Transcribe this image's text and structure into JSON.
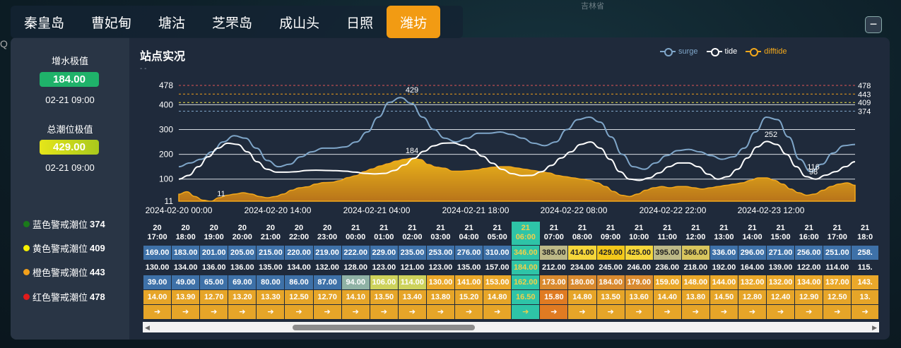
{
  "map": {
    "labels": [
      {
        "text": "吉林省"
      },
      {
        "text": "Q"
      }
    ]
  },
  "tabs": [
    {
      "label": "秦皇岛"
    },
    {
      "label": "曹妃甸"
    },
    {
      "label": "塘沽"
    },
    {
      "label": "芝罘岛"
    },
    {
      "label": "成山头"
    },
    {
      "label": "日照"
    },
    {
      "label": "潍坊"
    }
  ],
  "active_tab": "潍坊",
  "collapse_label": "−",
  "stats": {
    "surge_title": "增水极值",
    "surge_value": "184.00",
    "surge_time": "02-21 09:00",
    "tide_title": "总潮位极值",
    "tide_value": "429.00",
    "tide_time": "02-21 09:00"
  },
  "warnings": [
    {
      "label": "蓝色警戒潮位",
      "value": "374",
      "color": "#1a7a1a"
    },
    {
      "label": "黄色警戒潮位",
      "value": "409",
      "color": "#f6f000"
    },
    {
      "label": "橙色警戒潮位",
      "value": "443",
      "color": "#f2a01b"
    },
    {
      "label": "红色警戒潮位",
      "value": "478",
      "color": "#e21b1b"
    }
  ],
  "chart_title": "站点实况",
  "chart_data": {
    "type": "line",
    "series": [
      {
        "name": "surge",
        "color": "#7fa6c9",
        "values": [
          150,
          165,
          180,
          210,
          250,
          275,
          265,
          225,
          175,
          150,
          160,
          190,
          210,
          225,
          225,
          230,
          250,
          290,
          350,
          410,
          429,
          405,
          350,
          300,
          265,
          250,
          265,
          285,
          285,
          290,
          280,
          265,
          245,
          235,
          250,
          300,
          340,
          350,
          330,
          270,
          200,
          150,
          140,
          165,
          195,
          215,
          220,
          210,
          195,
          180,
          190,
          225,
          290,
          350,
          340,
          270,
          180,
          130,
          160,
          205,
          235,
          240
        ]
      },
      {
        "name": "tide",
        "color": "#ffffff",
        "values": [
          100,
          115,
          150,
          190,
          225,
          245,
          240,
          210,
          170,
          140,
          128,
          128,
          130,
          135,
          136,
          135,
          134,
          132,
          128,
          123,
          121,
          123,
          135,
          157,
          184,
          212,
          234,
          245,
          246,
          236,
          218,
          192,
          164,
          139,
          122,
          114,
          115,
          130,
          155,
          185,
          210,
          240,
          250,
          225,
          180,
          130,
          100,
          95,
          105,
          125,
          150,
          165,
          165,
          150,
          120,
          100,
          110,
          140,
          185,
          230,
          252,
          240,
          200,
          150,
          110,
          100,
          116,
          130,
          150,
          170
        ]
      },
      {
        "name": "difftide",
        "color": "#f3a81b",
        "values": [
          39,
          49,
          30,
          15,
          11,
          25,
          35,
          40,
          45,
          40,
          30,
          25,
          30,
          40,
          55,
          65,
          69,
          80,
          86,
          87,
          94,
          106,
          114,
          130,
          141,
          153,
          162,
          173,
          180,
          184,
          179,
          159,
          148,
          144,
          132,
          132,
          134,
          137,
          143,
          148,
          150,
          150,
          145,
          140,
          135,
          130,
          125,
          115,
          110,
          105,
          100,
          95,
          85,
          70,
          50,
          35,
          30,
          40,
          55,
          65,
          70,
          65,
          70,
          70,
          65,
          60,
          65,
          70,
          75,
          80,
          85,
          95,
          105,
          105,
          95,
          80,
          60,
          45,
          35,
          40,
          55,
          70,
          80,
          85,
          75
        ]
      }
    ],
    "x_tick_labels": [
      "2024-02-20 00:00",
      "2024-02-20 14:00",
      "2024-02-21 04:00",
      "2024-02-21 18:00",
      "2024-02-22 08:00",
      "2024-02-22 22:00",
      "2024-02-23 12:00"
    ],
    "y_tick_labels": [
      "11",
      "100",
      "200",
      "300",
      "400",
      "478"
    ],
    "ylim": [
      11,
      478
    ],
    "warning_lines": [
      {
        "value": 478,
        "color": "#e25555",
        "label": "478"
      },
      {
        "value": 443,
        "color": "#f2a01b",
        "label": "443"
      },
      {
        "value": 409,
        "color": "#f1e44a",
        "label": "409"
      },
      {
        "value": 374,
        "color": "#7fa6c9",
        "label": "374"
      }
    ],
    "point_labels": [
      {
        "series": "surge",
        "text": "429"
      },
      {
        "series": "tide",
        "text": "184"
      },
      {
        "series": "tide",
        "text": "252"
      },
      {
        "series": "tide",
        "text": "116"
      },
      {
        "series": "tide",
        "text": "98"
      },
      {
        "series": "difftide",
        "text": "11"
      }
    ],
    "grid": true,
    "legend_position": "top-right"
  },
  "table": {
    "headers": [
      [
        "20",
        "17:00"
      ],
      [
        "20",
        "18:00"
      ],
      [
        "20",
        "19:00"
      ],
      [
        "20",
        "20:00"
      ],
      [
        "20",
        "21:00"
      ],
      [
        "20",
        "22:00"
      ],
      [
        "20",
        "23:00"
      ],
      [
        "21",
        "00:00"
      ],
      [
        "21",
        "01:00"
      ],
      [
        "21",
        "02:00"
      ],
      [
        "21",
        "03:00"
      ],
      [
        "21",
        "04:00"
      ],
      [
        "21",
        "05:00"
      ],
      [
        "21",
        "06:00"
      ],
      [
        "21",
        "07:00"
      ],
      [
        "21",
        "08:00"
      ],
      [
        "21",
        "09:00"
      ],
      [
        "21",
        "10:00"
      ],
      [
        "21",
        "11:00"
      ],
      [
        "21",
        "12:00"
      ],
      [
        "21",
        "13:00"
      ],
      [
        "21",
        "14:00"
      ],
      [
        "21",
        "15:00"
      ],
      [
        "21",
        "16:00"
      ],
      [
        "21",
        "17:00"
      ],
      [
        "21",
        "18:0"
      ]
    ],
    "highlight_index": 13,
    "row_surge": [
      "169.00",
      "183.00",
      "201.00",
      "205.00",
      "215.00",
      "220.00",
      "219.00",
      "222.00",
      "229.00",
      "235.00",
      "253.00",
      "276.00",
      "310.00",
      "346.00",
      "385.00",
      "414.00",
      "429.00",
      "425.00",
      "395.00",
      "366.00",
      "336.00",
      "296.00",
      "271.00",
      "256.00",
      "251.00",
      "258."
    ],
    "row_tide": [
      "130.00",
      "134.00",
      "136.00",
      "136.00",
      "135.00",
      "134.00",
      "132.00",
      "128.00",
      "123.00",
      "121.00",
      "123.00",
      "135.00",
      "157.00",
      "184.00",
      "212.00",
      "234.00",
      "245.00",
      "246.00",
      "236.00",
      "218.00",
      "192.00",
      "164.00",
      "139.00",
      "122.00",
      "114.00",
      "115."
    ],
    "row_diff": [
      "39.00",
      "49.00",
      "65.00",
      "69.00",
      "80.00",
      "86.00",
      "87.00",
      "94.00",
      "106.00",
      "114.00",
      "130.00",
      "141.00",
      "153.00",
      "162.00",
      "173.00",
      "180.00",
      "184.00",
      "179.00",
      "159.00",
      "148.00",
      "144.00",
      "132.00",
      "132.00",
      "134.00",
      "137.00",
      "143."
    ],
    "row_wave": [
      "14.00",
      "13.90",
      "12.70",
      "13.20",
      "13.30",
      "12.50",
      "12.70",
      "14.10",
      "13.50",
      "13.40",
      "13.80",
      "15.20",
      "14.80",
      "16.50",
      "15.80",
      "14.80",
      "13.50",
      "13.60",
      "14.40",
      "13.80",
      "14.50",
      "12.80",
      "12.40",
      "12.90",
      "12.50",
      "13."
    ],
    "row_arrow": "➔"
  },
  "colors": {
    "accent": "#f29b13",
    "surge_badge": "#1fb26a",
    "tide_badge": "#c9d21a",
    "highlight": "#2ec4a7"
  }
}
